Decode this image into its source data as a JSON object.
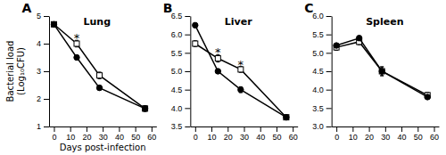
{
  "chart_data": [
    {
      "type": "line",
      "title": "Lung",
      "panel_label": "A",
      "x_label": "Days post-infection",
      "y_label": "Bacterial load\n(Log₁₀CFU)",
      "x": [
        0,
        14,
        28,
        56
      ],
      "xlim": [
        -3,
        63
      ],
      "xticks": [
        0,
        10,
        20,
        30,
        40,
        50,
        60
      ],
      "ylim": [
        1.0,
        5.0
      ],
      "yticks": [
        1,
        2,
        3,
        4,
        5
      ],
      "series": [
        {
          "color": "black",
          "marker": "square-open",
          "line_style": "solid",
          "values": [
            4.7,
            4.0,
            2.85,
            1.65
          ],
          "errors": [
            0.05,
            0.12,
            0.12,
            0.1
          ]
        },
        {
          "color": "black",
          "marker": "circle",
          "line_style": "solid",
          "values": [
            4.7,
            3.5,
            2.4,
            1.65
          ],
          "errors": [
            0.05,
            0.08,
            0.08,
            0.1
          ]
        }
      ],
      "annotations": [
        {
          "text": "*",
          "x": 14,
          "y": 4.18
        }
      ],
      "grid": false,
      "legend": false
    },
    {
      "type": "line",
      "title": "Liver",
      "panel_label": "B",
      "x": [
        0,
        14,
        28,
        56
      ],
      "xlim": [
        -3,
        63
      ],
      "xticks": [
        0,
        10,
        20,
        30,
        40,
        50,
        60
      ],
      "ylim": [
        3.5,
        6.5
      ],
      "yticks": [
        3.5,
        {
          "value": 4,
          "label": "4.0"
        },
        4.5,
        {
          "value": 5,
          "label": "5.0"
        },
        5.5,
        {
          "value": 6,
          "label": "6.0"
        },
        6.5
      ],
      "series": [
        {
          "color": "black",
          "marker": "square-open",
          "line_style": "solid",
          "values": [
            5.75,
            5.35,
            5.05,
            3.75
          ],
          "errors": [
            0.08,
            0.1,
            0.08,
            0.04
          ]
        },
        {
          "color": "black",
          "marker": "circle",
          "line_style": "solid",
          "values": [
            6.25,
            5.0,
            4.5,
            3.75
          ],
          "errors": [
            0.06,
            0.06,
            0.08,
            0.04
          ]
        }
      ],
      "annotations": [
        {
          "text": "*",
          "x": 14,
          "y": 5.52
        },
        {
          "text": "*",
          "x": 28,
          "y": 5.18
        }
      ],
      "grid": false,
      "legend": false
    },
    {
      "type": "line",
      "title": "Spleen",
      "panel_label": "C",
      "x": [
        0,
        14,
        28,
        56
      ],
      "xlim": [
        -3,
        63
      ],
      "xticks": [
        0,
        10,
        20,
        30,
        40,
        50,
        60
      ],
      "ylim": [
        3.0,
        6.0
      ],
      "yticks": [
        {
          "value": 3,
          "label": "3.0"
        },
        3.5,
        {
          "value": 4,
          "label": "4.0"
        },
        4.5,
        {
          "value": 5,
          "label": "5.0"
        },
        5.5,
        {
          "value": 6,
          "label": "6.0"
        }
      ],
      "series": [
        {
          "color": "black",
          "marker": "square-open",
          "line_style": "solid",
          "values": [
            5.15,
            5.3,
            4.5,
            3.85
          ],
          "errors": [
            0.08,
            0.08,
            0.12,
            0.08
          ]
        },
        {
          "color": "black",
          "marker": "circle",
          "line_style": "solid",
          "values": [
            5.2,
            5.4,
            4.5,
            3.8
          ],
          "errors": [
            0.06,
            0.06,
            0.12,
            0.06
          ]
        }
      ],
      "grid": false,
      "legend": false
    }
  ]
}
